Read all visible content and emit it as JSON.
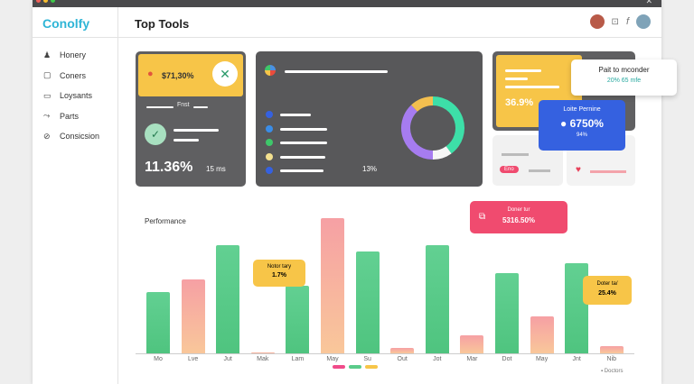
{
  "app": {
    "name": "Conolfy",
    "title": "Top Tools"
  },
  "sidebar": {
    "items": [
      {
        "label": "Honery",
        "icon": "user-icon"
      },
      {
        "label": "Coners",
        "icon": "square-icon"
      },
      {
        "label": "Loysants",
        "icon": "monitor-icon"
      },
      {
        "label": "Parts",
        "icon": "share-icon"
      },
      {
        "label": "Consicsion",
        "icon": "link-icon"
      }
    ]
  },
  "card1": {
    "value": "$71,30%",
    "mid_label": "Fnst",
    "percent": "11.36%",
    "sub": "15 ms"
  },
  "card2": {
    "percent": "13%",
    "donut": [
      {
        "color": "#3ddfa8",
        "value": 40
      },
      {
        "color": "#f6f6f6",
        "value": 10
      },
      {
        "color": "#a67cf0",
        "value": 38
      },
      {
        "color": "#f3bf4f",
        "value": 12
      }
    ]
  },
  "card3": {
    "percent": "36.9%",
    "popup_title": "Pait to mconder",
    "popup_sub": "20% 65 mfe",
    "blue_title": "Loite Pernine",
    "blue_value": "6750%",
    "blue_sub": "94%",
    "chip": "Eno"
  },
  "chart_data": {
    "type": "bar",
    "title": "Performance",
    "categories": [
      "Mo",
      "Lve",
      "Jut",
      "Mak",
      "Lam",
      "May",
      "Su",
      "Out",
      "Jot",
      "Mar",
      "Dot",
      "May",
      "Jnt",
      "Nib"
    ],
    "values": [
      68,
      82,
      120,
      1,
      75,
      150,
      113,
      6,
      120,
      20,
      89,
      41,
      100,
      8
    ],
    "series_type": [
      "green",
      "pink",
      "green",
      "pink",
      "green",
      "pink",
      "green",
      "pink",
      "green",
      "pink",
      "green",
      "pink",
      "green",
      "pink"
    ],
    "ylim": [
      0,
      150
    ],
    "legend": "Doctors",
    "annotations": [
      {
        "title": "Notor tary",
        "value": "1.7%"
      },
      {
        "title": "Doner tur",
        "value": "5316.50%"
      },
      {
        "title": "Doter ta/",
        "value": "25.4%"
      }
    ]
  },
  "colors": {
    "green": "#5acb8a",
    "pink": "#f6a0a4",
    "peach": "#f9c79a",
    "red": "#f04b6f",
    "yellow": "#f7c548",
    "blue": "#3561e0"
  }
}
